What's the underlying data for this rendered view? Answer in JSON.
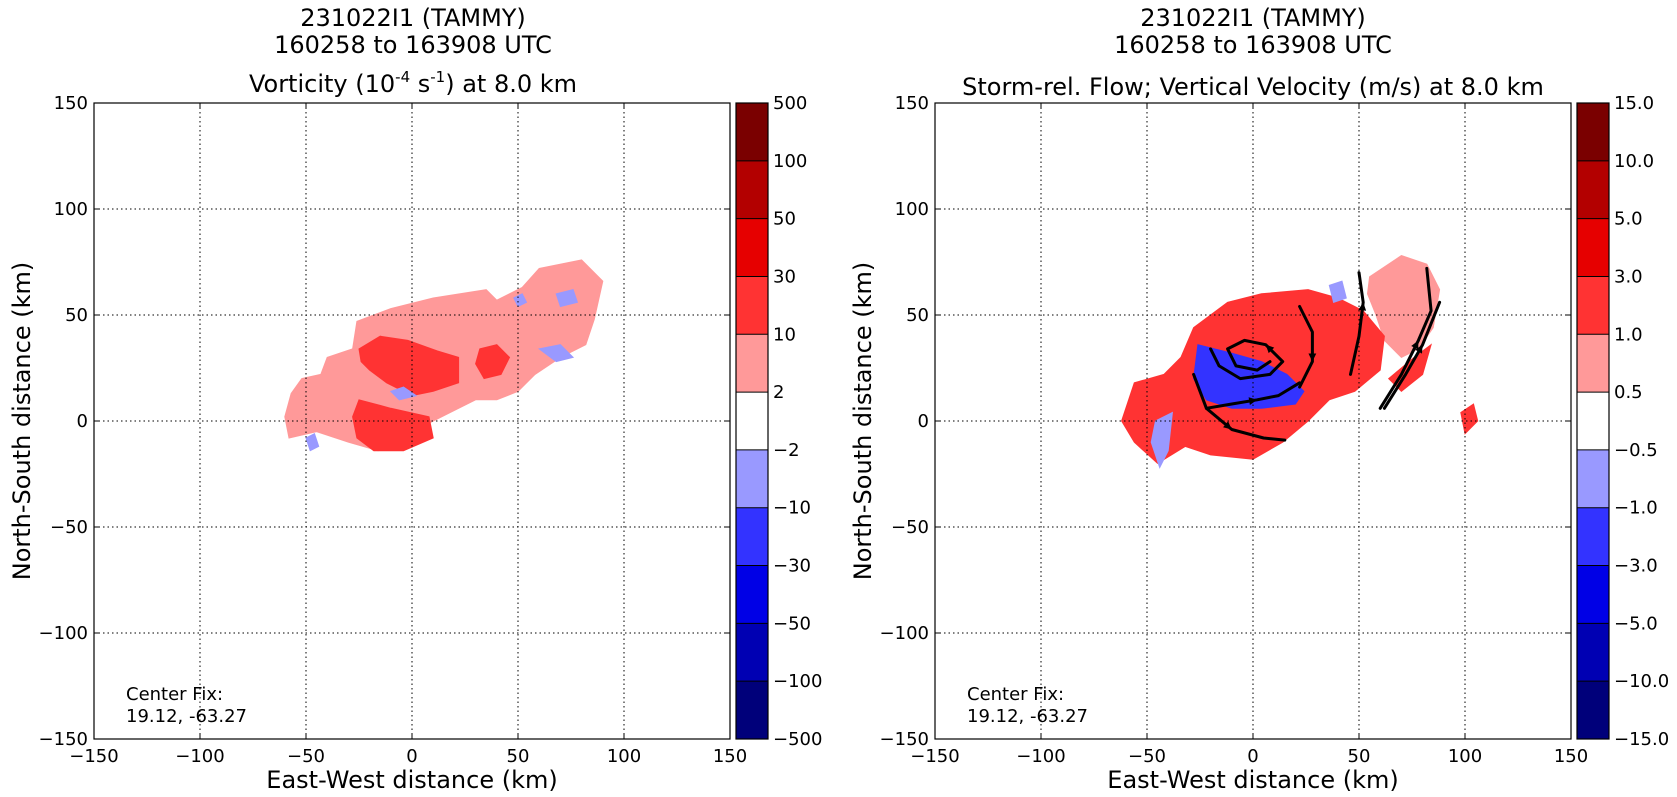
{
  "panels": [
    {
      "title_line1": "231022I1 (TAMMY)",
      "title_line2": "160258 to 163908 UTC",
      "title_line3": {
        "pre": "Vorticity (10",
        "sup1": "-4",
        "mid": " s",
        "sup2": "-1",
        "post": ") at 8.0 km"
      },
      "center_fix": {
        "label": "Center Fix:",
        "value": "19.12, -63.27"
      },
      "colorbar_labels": [
        "500",
        "100",
        "50",
        "30",
        "10",
        "2",
        "−2",
        "−10",
        "−30",
        "−50",
        "−100",
        "−500"
      ]
    },
    {
      "title_line1": "231022I1 (TAMMY)",
      "title_line2": "160258 to 163908 UTC",
      "title_line3": {
        "pre": "Storm-rel. Flow; Vertical Velocity (m/s) at 8.0 km"
      },
      "center_fix": {
        "label": "Center Fix:",
        "value": "19.12, -63.27"
      },
      "colorbar_labels": [
        "15.0",
        "10.0",
        "5.0",
        "3.0",
        "1.0",
        "0.5",
        "−0.5",
        "−1.0",
        "−3.0",
        "−5.0",
        "−10.0",
        "−15.0"
      ]
    }
  ],
  "colorbar_colors": [
    "#7a0000",
    "#b30000",
    "#e60000",
    "#ff3333",
    "#ff9999",
    "#ffffff",
    "#9999ff",
    "#3333ff",
    "#0000e6",
    "#0000b3",
    "#00007a"
  ],
  "chart_data": [
    {
      "type": "heatmap",
      "xlabel": "East-West distance (km)",
      "ylabel": "North-South distance (km)",
      "xlim": [
        -150,
        150
      ],
      "ylim": [
        -150,
        150
      ],
      "xticks": [
        -150,
        -100,
        -50,
        0,
        50,
        100,
        150
      ],
      "yticks": [
        -150,
        -100,
        -50,
        0,
        50,
        100,
        150
      ],
      "xtick_labels": [
        "−150",
        "−100",
        "−50",
        "0",
        "50",
        "100",
        "150"
      ],
      "ytick_labels": [
        "−150",
        "−100",
        "−50",
        "0",
        "50",
        "100",
        "150"
      ],
      "grid": true,
      "colorbar_levels": [
        -500,
        -100,
        -50,
        -30,
        -10,
        -2,
        2,
        10,
        30,
        50,
        100,
        500
      ],
      "regions": [
        {
          "level": "2 to 10",
          "color": "#ff9999",
          "outline": [
            [
              -57,
              13
            ],
            [
              -52,
              20
            ],
            [
              -43,
              22
            ],
            [
              -40,
              30
            ],
            [
              -28,
              34
            ],
            [
              -26,
              47
            ],
            [
              -10,
              53
            ],
            [
              10,
              58
            ],
            [
              35,
              62
            ],
            [
              40,
              57
            ],
            [
              52,
              63
            ],
            [
              60,
              72
            ],
            [
              80,
              76
            ],
            [
              90,
              66
            ],
            [
              86,
              48
            ],
            [
              82,
              36
            ],
            [
              70,
              30
            ],
            [
              58,
              22
            ],
            [
              50,
              14
            ],
            [
              40,
              10
            ],
            [
              30,
              10
            ],
            [
              22,
              6
            ],
            [
              10,
              0
            ],
            [
              -2,
              -6
            ],
            [
              -16,
              -14
            ],
            [
              -30,
              -10
            ],
            [
              -45,
              -5
            ],
            [
              -58,
              -8
            ],
            [
              -60,
              2
            ]
          ]
        },
        {
          "level": "10 to 30",
          "color": "#ff3333",
          "outline": [
            [
              -25,
              34
            ],
            [
              -15,
              40
            ],
            [
              -2,
              38
            ],
            [
              12,
              33
            ],
            [
              22,
              30
            ],
            [
              22,
              18
            ],
            [
              10,
              14
            ],
            [
              0,
              12
            ],
            [
              -12,
              18
            ],
            [
              -20,
              24
            ],
            [
              -24,
              28
            ]
          ]
        },
        {
          "level": "10 to 30",
          "color": "#ff3333",
          "outline": [
            [
              -25,
              10
            ],
            [
              -10,
              6
            ],
            [
              8,
              2
            ],
            [
              10,
              -8
            ],
            [
              -4,
              -14
            ],
            [
              -18,
              -14
            ],
            [
              -26,
              -8
            ],
            [
              -28,
              2
            ]
          ]
        },
        {
          "level": "10 to 30",
          "color": "#ff3333",
          "outline": [
            [
              32,
              34
            ],
            [
              40,
              36
            ],
            [
              46,
              30
            ],
            [
              42,
              22
            ],
            [
              34,
              20
            ],
            [
              30,
              27
            ]
          ]
        },
        {
          "level": "-2 to -10",
          "color": "#9999ff",
          "outline": [
            [
              48,
              58
            ],
            [
              52,
              60
            ],
            [
              54,
              56
            ],
            [
              50,
              54
            ]
          ]
        },
        {
          "level": "-2 to -10",
          "color": "#9999ff",
          "outline": [
            [
              60,
              34
            ],
            [
              70,
              36
            ],
            [
              76,
              30
            ],
            [
              68,
              28
            ]
          ]
        },
        {
          "level": "-2 to -10",
          "color": "#9999ff",
          "outline": [
            [
              -50,
              -8
            ],
            [
              -46,
              -6
            ],
            [
              -44,
              -12
            ],
            [
              -48,
              -14
            ]
          ]
        },
        {
          "level": "-2 to -10",
          "color": "#9999ff",
          "outline": [
            [
              -10,
              14
            ],
            [
              -4,
              16
            ],
            [
              2,
              12
            ],
            [
              -6,
              10
            ]
          ]
        },
        {
          "level": "-2 to -10",
          "color": "#9999ff",
          "outline": [
            [
              68,
              60
            ],
            [
              76,
              62
            ],
            [
              78,
              56
            ],
            [
              70,
              54
            ]
          ]
        }
      ]
    },
    {
      "type": "heatmap",
      "xlabel": "East-West distance (km)",
      "ylabel": "North-South distance (km)",
      "xlim": [
        -150,
        150
      ],
      "ylim": [
        -150,
        150
      ],
      "xticks": [
        -150,
        -100,
        -50,
        0,
        50,
        100,
        150
      ],
      "yticks": [
        -150,
        -100,
        -50,
        0,
        50,
        100,
        150
      ],
      "xtick_labels": [
        "−150",
        "−100",
        "−50",
        "0",
        "50",
        "100",
        "150"
      ],
      "ytick_labels": [
        "−150",
        "−100",
        "−50",
        "0",
        "50",
        "100",
        "150"
      ],
      "grid": true,
      "colorbar_levels": [
        -15.0,
        -10.0,
        -5.0,
        -3.0,
        -1.0,
        -0.5,
        0.5,
        1.0,
        3.0,
        5.0,
        10.0,
        15.0
      ],
      "regions": [
        {
          "level": "0.5 to 1.0",
          "color": "#ff9999",
          "outline": [
            [
              55,
              68
            ],
            [
              70,
              78
            ],
            [
              82,
              74
            ],
            [
              88,
              62
            ],
            [
              85,
              44
            ],
            [
              78,
              34
            ],
            [
              70,
              30
            ],
            [
              62,
              38
            ],
            [
              58,
              50
            ],
            [
              54,
              60
            ]
          ]
        },
        {
          "level": "1.0 to 3.0",
          "color": "#ff3333",
          "outline": [
            [
              -28,
              44
            ],
            [
              -12,
              56
            ],
            [
              4,
              60
            ],
            [
              26,
              62
            ],
            [
              40,
              58
            ],
            [
              52,
              52
            ],
            [
              62,
              40
            ],
            [
              60,
              24
            ],
            [
              48,
              14
            ],
            [
              36,
              10
            ],
            [
              26,
              0
            ],
            [
              14,
              -10
            ],
            [
              0,
              -18
            ],
            [
              -20,
              -16
            ],
            [
              -32,
              -12
            ],
            [
              -45,
              -20
            ],
            [
              -56,
              -10
            ],
            [
              -62,
              0
            ],
            [
              -56,
              18
            ],
            [
              -42,
              22
            ],
            [
              -34,
              30
            ]
          ]
        },
        {
          "level": "1.0 to 3.0",
          "color": "#ff3333",
          "outline": [
            [
              64,
              20
            ],
            [
              76,
              30
            ],
            [
              84,
              36
            ],
            [
              80,
              22
            ],
            [
              70,
              14
            ]
          ]
        },
        {
          "level": "1.0 to 3.0",
          "color": "#ff3333",
          "outline": [
            [
              98,
              4
            ],
            [
              104,
              8
            ],
            [
              106,
              0
            ],
            [
              100,
              -6
            ]
          ]
        },
        {
          "level": "-1.0 to -3.0",
          "color": "#3333ff",
          "outline": [
            [
              -26,
              36
            ],
            [
              -10,
              32
            ],
            [
              4,
              28
            ],
            [
              16,
              22
            ],
            [
              24,
              14
            ],
            [
              20,
              8
            ],
            [
              4,
              6
            ],
            [
              -10,
              6
            ],
            [
              -22,
              10
            ],
            [
              -28,
              20
            ]
          ]
        },
        {
          "level": "-0.5 to -1.0",
          "color": "#9999ff",
          "outline": [
            [
              -46,
              0
            ],
            [
              -38,
              4
            ],
            [
              -40,
              -14
            ],
            [
              -44,
              -22
            ],
            [
              -48,
              -10
            ]
          ]
        },
        {
          "level": "-0.5 to -1.0",
          "color": "#9999ff",
          "outline": [
            [
              36,
              64
            ],
            [
              42,
              66
            ],
            [
              44,
              58
            ],
            [
              38,
              56
            ]
          ]
        }
      ],
      "streamlines": [
        [
          [
            -28,
            22
          ],
          [
            -22,
            6
          ],
          [
            -10,
            -4
          ],
          [
            5,
            -8
          ],
          [
            15,
            -9
          ]
        ],
        [
          [
            -20,
            34
          ],
          [
            -16,
            26
          ],
          [
            -6,
            20
          ],
          [
            8,
            22
          ],
          [
            14,
            28
          ],
          [
            6,
            36
          ],
          [
            -4,
            38
          ],
          [
            -12,
            34
          ],
          [
            -8,
            26
          ],
          [
            2,
            24
          ],
          [
            8,
            28
          ]
        ],
        [
          [
            -22,
            6
          ],
          [
            -10,
            8
          ],
          [
            2,
            10
          ],
          [
            12,
            12
          ],
          [
            22,
            18
          ]
        ],
        [
          [
            22,
            54
          ],
          [
            28,
            42
          ],
          [
            28,
            28
          ],
          [
            22,
            16
          ]
        ],
        [
          [
            46,
            22
          ],
          [
            50,
            40
          ],
          [
            52,
            56
          ],
          [
            50,
            70
          ]
        ],
        [
          [
            60,
            6
          ],
          [
            70,
            22
          ],
          [
            78,
            38
          ],
          [
            84,
            52
          ],
          [
            82,
            72
          ]
        ],
        [
          [
            62,
            6
          ],
          [
            72,
            22
          ],
          [
            80,
            36
          ],
          [
            88,
            56
          ]
        ]
      ]
    }
  ]
}
